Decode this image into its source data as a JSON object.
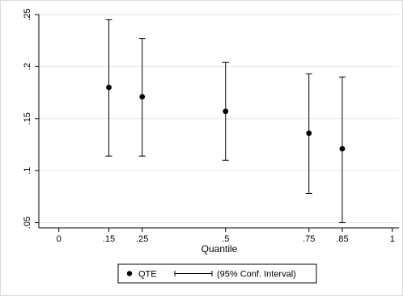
{
  "chart_data": {
    "type": "scatter",
    "title": "",
    "xlabel": "Quantile",
    "ylabel": "",
    "xlim": [
      -0.06,
      1.02
    ],
    "ylim": [
      0.045,
      0.25
    ],
    "x_ticks": [
      0,
      0.15,
      0.25,
      0.5,
      0.75,
      0.85,
      1
    ],
    "x_tick_labels": [
      "0",
      ".15",
      ".25",
      ".5",
      ".75",
      ".85",
      "1"
    ],
    "y_ticks": [
      0.05,
      0.1,
      0.15,
      0.2,
      0.25
    ],
    "y_tick_labels": [
      ".05",
      ".1",
      ".15",
      ".2",
      ".25"
    ],
    "grid": "horizontal",
    "legend_position": "bottom",
    "series": [
      {
        "name": "QTE",
        "type": "point",
        "x": [
          0.15,
          0.25,
          0.5,
          0.75,
          0.85
        ],
        "y": [
          0.18,
          0.171,
          0.157,
          0.136,
          0.121
        ]
      },
      {
        "name": "(95% Conf. Interval)",
        "type": "errorbar",
        "x": [
          0.15,
          0.25,
          0.5,
          0.75,
          0.85
        ],
        "low": [
          0.114,
          0.114,
          0.11,
          0.078,
          0.05
        ],
        "high": [
          0.245,
          0.227,
          0.204,
          0.193,
          0.19
        ]
      }
    ]
  },
  "legend": {
    "point_label": "QTE",
    "ci_label": "(95% Conf. Interval)"
  },
  "colors": {
    "marker": "#000000",
    "grid": "#e6e6e6",
    "axis": "#000000"
  }
}
